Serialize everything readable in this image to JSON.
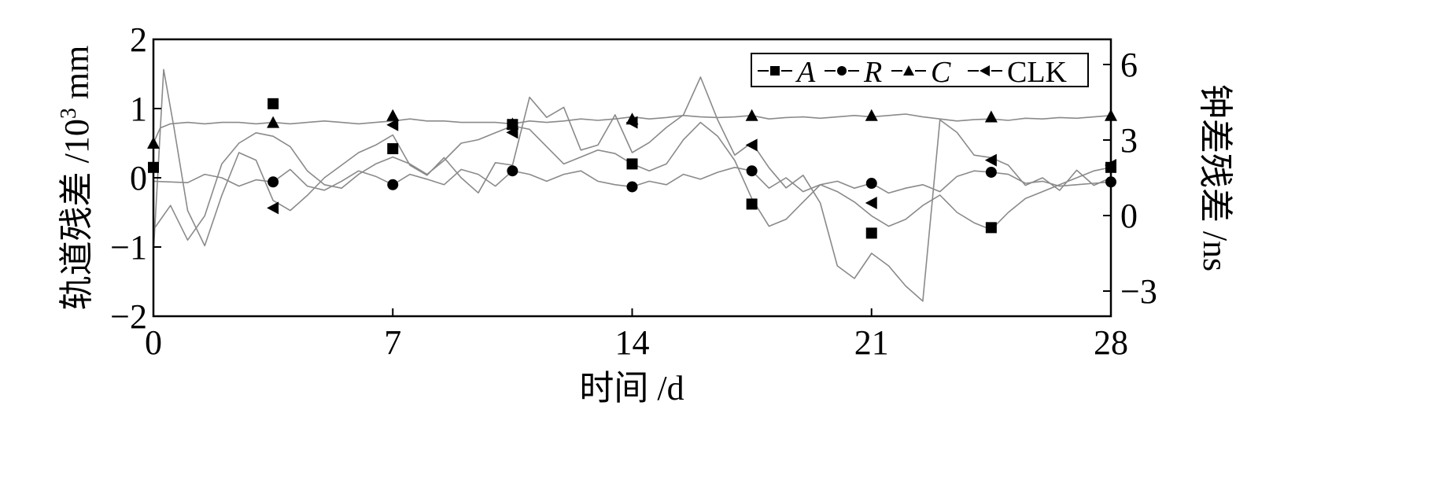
{
  "chart_data": {
    "type": "line",
    "title": "",
    "xlabel": "时间 /d",
    "ylabel_left": {
      "prefix": "轨道残差 /10",
      "sup": "3",
      "suffix": " mm"
    },
    "ylabel_right": "钟差残差 /ns",
    "xlim": [
      0,
      28
    ],
    "ylim_left": [
      -2,
      2
    ],
    "ylim_right": [
      -4,
      7
    ],
    "x_ticks": [
      0,
      7,
      14,
      21,
      28
    ],
    "y_ticks_left": [
      2,
      1,
      0,
      -1,
      -2
    ],
    "y_tick_labels_left": [
      "2",
      "1",
      "0",
      "−1",
      "−2"
    ],
    "y_ticks_right": [
      6,
      3,
      0,
      -3
    ],
    "y_tick_labels_right": [
      "6",
      "3",
      "0",
      "−3"
    ],
    "grid": false,
    "legend_position": "top-right",
    "line_color": "#8a8a8a",
    "series": [
      {
        "name": "A",
        "italic": true,
        "marker": "square",
        "axis": "left",
        "marker_x": [
          0,
          3.5,
          7,
          10.5,
          14,
          17.5,
          21,
          24.5,
          28
        ],
        "marker_y": [
          0.15,
          1.07,
          0.42,
          0.77,
          0.2,
          -0.38,
          -0.8,
          -0.72,
          0.15
        ],
        "x": [
          0,
          0.5,
          1,
          1.5,
          2,
          2.5,
          3,
          3.5,
          4,
          4.5,
          5,
          5.5,
          6,
          6.5,
          7,
          7.5,
          8,
          8.5,
          9,
          9.5,
          10,
          10.5,
          11,
          11.5,
          12,
          12.5,
          13,
          13.5,
          14,
          14.5,
          15,
          15.5,
          16,
          16.5,
          17,
          17.5,
          18,
          18.5,
          19,
          19.5,
          20,
          20.5,
          21,
          21.5,
          22,
          22.5,
          23,
          23.5,
          24,
          24.5,
          25,
          25.5,
          26,
          26.5,
          27,
          27.5,
          28
        ],
        "y": [
          -0.75,
          -0.4,
          -0.9,
          -0.55,
          0.2,
          0.5,
          0.65,
          0.6,
          0.45,
          0.1,
          -0.1,
          -0.15,
          0.05,
          0.2,
          0.3,
          0.2,
          0.05,
          0.25,
          0.5,
          0.55,
          0.65,
          0.75,
          0.7,
          0.45,
          0.2,
          0.3,
          0.4,
          0.35,
          0.2,
          0.1,
          0.2,
          0.55,
          0.8,
          0.6,
          0.25,
          -0.3,
          -0.7,
          -0.6,
          -0.35,
          -0.1,
          -0.2,
          -0.35,
          -0.55,
          -0.7,
          -0.6,
          -0.4,
          -0.25,
          -0.5,
          -0.65,
          -0.75,
          -0.5,
          -0.3,
          -0.2,
          -0.1,
          0,
          0.1,
          0.15
        ]
      },
      {
        "name": "R",
        "italic": true,
        "marker": "circle",
        "axis": "left",
        "marker_x": [
          3.5,
          7,
          10.5,
          14,
          17.5,
          21,
          24.5,
          28
        ],
        "marker_y": [
          -0.06,
          -0.1,
          0.1,
          -0.13,
          0.1,
          -0.08,
          0.08,
          -0.06
        ],
        "x": [
          0,
          0.5,
          1,
          1.5,
          2,
          2.5,
          3,
          3.5,
          4,
          4.5,
          5,
          5.5,
          6,
          6.5,
          7,
          7.5,
          8,
          8.5,
          9,
          9.5,
          10,
          10.5,
          11,
          11.5,
          12,
          12.5,
          13,
          13.5,
          14,
          14.5,
          15,
          15.5,
          16,
          16.5,
          17,
          17.5,
          18,
          18.5,
          19,
          19.5,
          20,
          20.5,
          21,
          21.5,
          22,
          22.5,
          23,
          23.5,
          24,
          24.5,
          25,
          25.5,
          26,
          26.5,
          27,
          27.5,
          28
        ],
        "y": [
          -0.05,
          -0.06,
          -0.07,
          0.05,
          0,
          -0.12,
          -0.03,
          -0.06,
          0.12,
          -0.12,
          -0.18,
          -0.05,
          0.1,
          0.02,
          -0.1,
          0.05,
          -0.02,
          -0.1,
          0.12,
          0.05,
          -0.12,
          0.1,
          0.05,
          -0.05,
          0.05,
          0.1,
          -0.05,
          -0.1,
          -0.13,
          -0.05,
          -0.1,
          0.05,
          -0.02,
          0.08,
          0.15,
          0.1,
          -0.15,
          0,
          -0.2,
          -0.1,
          -0.05,
          -0.15,
          -0.08,
          -0.22,
          -0.15,
          -0.1,
          -0.2,
          0.02,
          0.1,
          0.08,
          0.05,
          -0.08,
          -0.05,
          -0.12,
          -0.1,
          -0.08,
          -0.06
        ]
      },
      {
        "name": "C",
        "italic": true,
        "marker": "triangle-up",
        "axis": "left",
        "marker_x": [
          0,
          3.5,
          7,
          10.5,
          14,
          17.5,
          21,
          24.5,
          28
        ],
        "marker_y": [
          0.5,
          0.8,
          0.9,
          0.78,
          0.85,
          0.9,
          0.9,
          0.88,
          0.9
        ],
        "x": [
          0,
          0.2,
          0.5,
          1,
          1.5,
          2,
          2.5,
          3,
          3.5,
          4,
          4.5,
          5,
          5.5,
          6,
          6.5,
          7,
          7.5,
          8,
          8.5,
          9,
          9.5,
          10,
          10.5,
          11,
          11.5,
          12,
          12.5,
          13,
          13.5,
          14,
          14.5,
          15,
          15.5,
          16,
          16.5,
          17,
          17.5,
          18,
          18.5,
          19,
          19.5,
          20,
          20.5,
          21,
          21.5,
          22,
          22.5,
          23,
          23.5,
          24,
          24.5,
          25,
          25.5,
          26,
          26.5,
          27,
          27.5,
          28
        ],
        "y": [
          0.5,
          0.72,
          0.78,
          0.8,
          0.78,
          0.8,
          0.8,
          0.78,
          0.8,
          0.78,
          0.8,
          0.82,
          0.8,
          0.78,
          0.8,
          0.82,
          0.85,
          0.82,
          0.82,
          0.8,
          0.8,
          0.8,
          0.78,
          0.82,
          0.8,
          0.82,
          0.85,
          0.83,
          0.85,
          0.88,
          0.85,
          0.87,
          0.9,
          0.88,
          0.87,
          0.88,
          0.9,
          0.85,
          0.87,
          0.88,
          0.86,
          0.88,
          0.9,
          0.88,
          0.9,
          0.92,
          0.88,
          0.85,
          0.82,
          0.84,
          0.85,
          0.83,
          0.86,
          0.85,
          0.87,
          0.86,
          0.88,
          0.9
        ]
      },
      {
        "name": "CLK",
        "italic": false,
        "marker": "triangle-left",
        "axis": "right",
        "marker_x": [
          3.5,
          7,
          10.5,
          14,
          17.5,
          21,
          24.5,
          28
        ],
        "marker_y": [
          0.3,
          3.6,
          3.3,
          3.7,
          2.8,
          0.5,
          2.2,
          2
        ],
        "x": [
          0,
          0.3,
          0.6,
          1,
          1.5,
          2,
          2.5,
          3,
          3.5,
          4,
          4.5,
          5,
          5.5,
          6,
          6.5,
          7,
          7.5,
          8,
          8.5,
          9,
          9.5,
          10,
          10.5,
          11,
          11.5,
          12,
          12.5,
          13,
          13.5,
          14,
          14.5,
          15,
          15.5,
          16,
          16.5,
          17,
          17.5,
          18,
          18.5,
          19,
          19.5,
          20,
          20.5,
          21,
          21.5,
          22,
          22.5,
          23,
          23.5,
          24,
          24.5,
          25,
          25.5,
          26,
          26.5,
          27,
          27.5,
          28
        ],
        "y": [
          -1.5,
          5.8,
          3.5,
          0.2,
          -1.2,
          0.8,
          2.5,
          2.2,
          0.6,
          0.2,
          0.8,
          1.5,
          2.0,
          2.5,
          2.8,
          3.2,
          2.0,
          1.6,
          2.3,
          1.5,
          0.9,
          2.1,
          2.0,
          4.7,
          3.9,
          4.3,
          2.6,
          2.8,
          4.0,
          2.5,
          2.9,
          3.5,
          4.0,
          5.5,
          3.8,
          2.4,
          2.9,
          1.9,
          1.1,
          1.6,
          0.5,
          -2.0,
          -2.5,
          -1.5,
          -2.0,
          -2.8,
          -3.4,
          3.8,
          3.3,
          2.4,
          2.3,
          2.0,
          1.2,
          1.5,
          1.0,
          1.8,
          1.2,
          1.5
        ]
      }
    ]
  }
}
